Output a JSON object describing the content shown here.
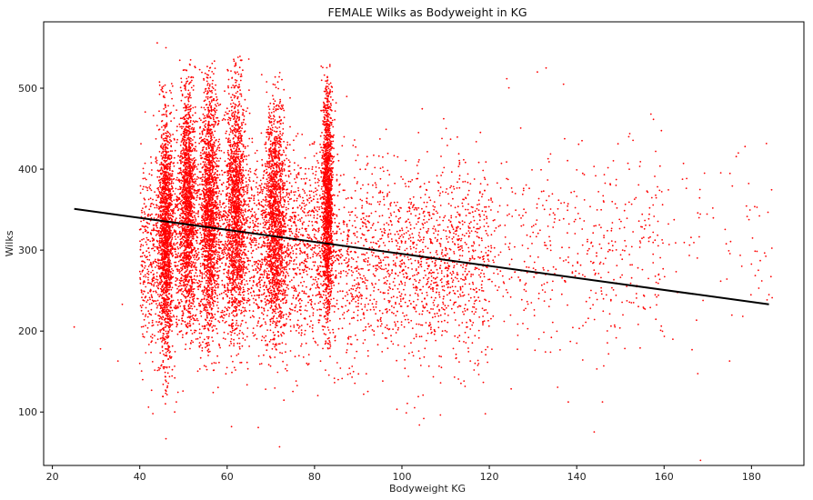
{
  "chart_data": {
    "type": "scatter",
    "title": "FEMALE Wilks as Bodyweight in KG",
    "xlabel": "Bodyweight KG",
    "ylabel": "Wilks",
    "xlim": [
      18,
      192
    ],
    "ylim": [
      34,
      582
    ],
    "xticks": [
      20,
      40,
      60,
      80,
      100,
      120,
      140,
      160,
      180
    ],
    "yticks": [
      100,
      200,
      300,
      400,
      500
    ],
    "grid": false,
    "legend": "none",
    "point_color": "#ff0000",
    "line_color": "#000000",
    "series": [
      {
        "kind": "scatter",
        "clusters": [
          {
            "x_center": 46,
            "x_spread": 0.8,
            "y_min": 130,
            "y_max": 510
          },
          {
            "x_center": 51,
            "x_spread": 0.9,
            "y_min": 190,
            "y_max": 535
          },
          {
            "x_center": 56,
            "x_spread": 1.0,
            "y_min": 170,
            "y_max": 540
          },
          {
            "x_center": 62,
            "x_spread": 1.1,
            "y_min": 170,
            "y_max": 540
          },
          {
            "x_center": 71,
            "x_spread": 1.2,
            "y_min": 170,
            "y_max": 520
          },
          {
            "x_center": 83,
            "x_spread": 0.6,
            "y_min": 190,
            "y_max": 530
          }
        ],
        "diffuse_bands": [
          {
            "x_range": [
              40,
              84
            ],
            "y_mean": 300,
            "y_sd": 60
          },
          {
            "x_range": [
              84,
              120
            ],
            "y_mean": 285,
            "y_sd": 60
          },
          {
            "x_range": [
              120,
              160
            ],
            "y_mean": 300,
            "y_sd": 65
          },
          {
            "x_range": [
              160,
              185
            ],
            "y_mean": 300,
            "y_sd": 70
          }
        ],
        "outliers": [
          [
            25,
            205
          ],
          [
            31,
            178
          ],
          [
            35,
            163
          ],
          [
            36,
            233
          ],
          [
            40,
            160
          ],
          [
            41,
            262
          ],
          [
            42,
            106
          ],
          [
            43,
            98
          ],
          [
            44,
            556
          ],
          [
            46,
            67
          ],
          [
            46,
            550
          ],
          [
            48,
            100
          ],
          [
            61,
            82
          ],
          [
            72,
            57
          ],
          [
            101,
            99
          ],
          [
            104,
            84
          ],
          [
            105,
            92
          ],
          [
            175,
            163
          ],
          [
            177,
            420
          ],
          [
            182,
            287
          ],
          [
            184,
            245
          ],
          [
            131,
            520
          ],
          [
            133,
            525
          ],
          [
            137,
            505
          ],
          [
            140,
            185
          ],
          [
            157,
            468
          ],
          [
            162,
            190
          ],
          [
            168,
            340
          ]
        ]
      },
      {
        "kind": "line",
        "name": "trend",
        "x": [
          25,
          184
        ],
        "y": [
          351,
          233
        ]
      }
    ]
  }
}
